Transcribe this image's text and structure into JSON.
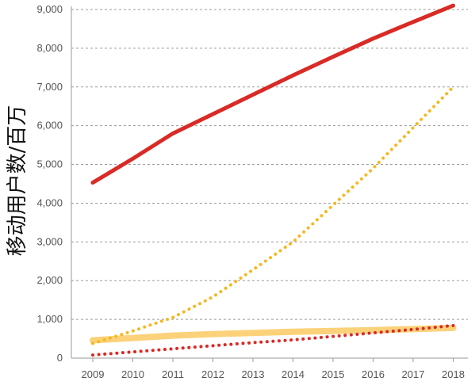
{
  "chart_data": {
    "type": "line",
    "title": "",
    "xlabel": "",
    "ylabel": "移动用户数/百万",
    "x": [
      2009,
      2010,
      2011,
      2012,
      2013,
      2014,
      2015,
      2016,
      2017,
      2018
    ],
    "x_tick_labels": [
      "2009",
      "2010",
      "2011",
      "2012",
      "2013",
      "2014",
      "2015",
      "2016",
      "2017",
      "2018"
    ],
    "ylim": [
      0,
      9000
    ],
    "y_ticks": [
      0,
      1000,
      2000,
      3000,
      4000,
      5000,
      6000,
      7000,
      8000,
      9000
    ],
    "y_tick_labels": [
      "0",
      "1,000",
      "2,000",
      "3,000",
      "4,000",
      "5,000",
      "6,000",
      "7,000",
      "8,000",
      "9,000"
    ],
    "grid": true,
    "legend": "none",
    "series": [
      {
        "values": [
          4530,
          5150,
          5800,
          6300,
          6800,
          7300,
          7780,
          8250,
          8680,
          9100
        ],
        "color": "#d92b26",
        "style": "solid",
        "width": "thick"
      },
      {
        "values": [
          380,
          700,
          1050,
          1580,
          2280,
          3000,
          3950,
          4900,
          5950,
          7000
        ],
        "color": "#f5b81f",
        "style": "dotted",
        "width": "medium"
      },
      {
        "values": [
          460,
          520,
          580,
          620,
          650,
          680,
          700,
          720,
          750,
          780
        ],
        "color": "#fbd27a",
        "style": "solid",
        "width": "extra-thick"
      },
      {
        "values": [
          80,
          160,
          240,
          320,
          400,
          470,
          560,
          650,
          740,
          840
        ],
        "color": "#d92b26",
        "style": "dotted",
        "width": "medium"
      }
    ]
  }
}
